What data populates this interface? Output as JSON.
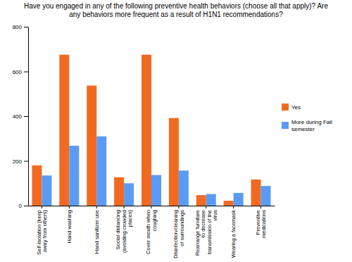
{
  "chart_data": {
    "type": "bar",
    "title": "Have you engaged in any of the following preventive health behaviors (choose all that apply)? Are any behaviors more frequent as a result of H1N1 recommendations?",
    "categories": [
      "Self-isolation (keep away from others)",
      "Hand washing",
      "Hand sanitizer use",
      "Social distancing (avoiding crowded places)",
      "Cover mouth when coughing",
      "Disinfection/cleaning of surroundings",
      "Rearrange furniture to decrease transmission of the virus",
      "Wearing a facemask",
      "Preventive medications"
    ],
    "series": [
      {
        "name": "Yes",
        "color": "#f26a21",
        "values": [
          180,
          675,
          537,
          127,
          675,
          392,
          47,
          22,
          117
        ]
      },
      {
        "name": "More during Fall semester",
        "color": "#5a9cf5",
        "values": [
          135,
          268,
          310,
          100,
          137,
          157,
          52,
          57,
          88
        ]
      }
    ],
    "ylim": [
      0,
      800
    ],
    "yticks": [
      0,
      200,
      400,
      600,
      800
    ],
    "grid": false,
    "legend": "right"
  }
}
